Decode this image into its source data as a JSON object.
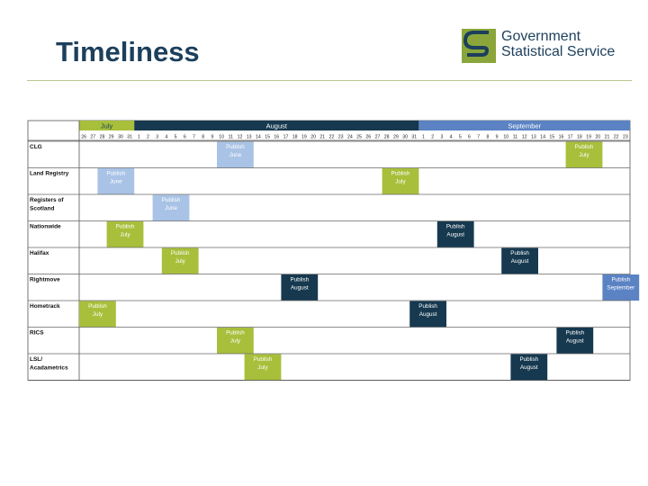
{
  "title": "Timeliness",
  "logo": {
    "line1": "Government",
    "line2": "Statistical Service",
    "icon": "gss-logo-icon"
  },
  "colors": {
    "july": "#a7bf3b",
    "august": "#16394f",
    "september": "#5b83c4",
    "june": "#a9c3e6",
    "title": "#1c3f5c"
  },
  "timeline": {
    "months": [
      {
        "label": "July",
        "days": [
          "26",
          "27",
          "28",
          "29",
          "30",
          "31"
        ],
        "color": "#a7bf3b"
      },
      {
        "label": "August",
        "days": [
          "1",
          "2",
          "3",
          "4",
          "5",
          "6",
          "7",
          "8",
          "9",
          "10",
          "11",
          "12",
          "13",
          "14",
          "15",
          "16",
          "17",
          "18",
          "19",
          "20",
          "21",
          "22",
          "23",
          "24",
          "25",
          "26",
          "27",
          "28",
          "29",
          "30",
          "31"
        ],
        "color": "#16394f"
      },
      {
        "label": "September",
        "days": [
          "1",
          "2",
          "3",
          "4",
          "5",
          "6",
          "7",
          "8",
          "9",
          "10",
          "11",
          "12",
          "13",
          "14",
          "15",
          "16",
          "17",
          "18",
          "19",
          "20",
          "21",
          "22",
          "23"
        ],
        "color": "#5b83c4"
      }
    ],
    "rows": [
      {
        "label": "CLG",
        "items": [
          {
            "text": "Publish June",
            "start": 15,
            "span": 4,
            "kind": "june"
          },
          {
            "text": "Publish July",
            "start": 53,
            "span": 4,
            "kind": "july"
          }
        ]
      },
      {
        "label": "Land Registry",
        "items": [
          {
            "text": "Publish June",
            "start": 2,
            "span": 4,
            "kind": "june"
          },
          {
            "text": "Publish July",
            "start": 33,
            "span": 4,
            "kind": "july"
          }
        ]
      },
      {
        "label": "Registers of Scotland",
        "items": [
          {
            "text": "Publish June",
            "start": 8,
            "span": 4,
            "kind": "june"
          }
        ]
      },
      {
        "label": "Nationwide",
        "items": [
          {
            "text": "Publish July",
            "start": 3,
            "span": 4,
            "kind": "july"
          },
          {
            "text": "Publish August",
            "start": 39,
            "span": 4,
            "kind": "august"
          }
        ]
      },
      {
        "label": "Halifax",
        "items": [
          {
            "text": "Publish July",
            "start": 9,
            "span": 4,
            "kind": "july"
          },
          {
            "text": "Publish August",
            "start": 46,
            "span": 4,
            "kind": "august"
          }
        ]
      },
      {
        "label": "Rightmove",
        "items": [
          {
            "text": "Publish August",
            "start": 22,
            "span": 4,
            "kind": "august"
          },
          {
            "text": "Publish September",
            "start": 57,
            "span": 4,
            "kind": "september"
          }
        ]
      },
      {
        "label": "Hometrack",
        "items": [
          {
            "text": "Publish July",
            "start": 0,
            "span": 4,
            "kind": "july"
          },
          {
            "text": "Publish August",
            "start": 36,
            "span": 4,
            "kind": "august"
          }
        ]
      },
      {
        "label": "RICS",
        "items": [
          {
            "text": "Publish July",
            "start": 15,
            "span": 4,
            "kind": "july"
          },
          {
            "text": "Publish August",
            "start": 52,
            "span": 4,
            "kind": "august"
          }
        ]
      },
      {
        "label": "LSL/ Acadametrics",
        "items": [
          {
            "text": "Publish July",
            "start": 18,
            "span": 4,
            "kind": "july"
          },
          {
            "text": "Publish August",
            "start": 47,
            "span": 4,
            "kind": "august"
          }
        ]
      }
    ]
  }
}
